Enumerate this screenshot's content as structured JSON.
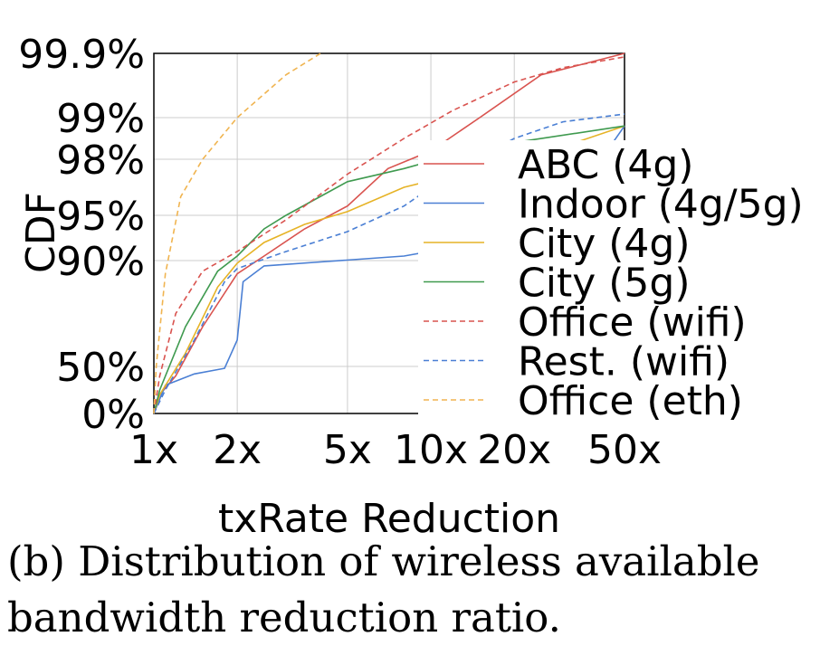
{
  "caption": "(b) Distribution of wireless available bandwidth reduction ratio.",
  "chart_data": {
    "type": "line",
    "xlabel": "txRate Reduction",
    "ylabel": "CDF",
    "x_scale": "log",
    "xlim": [
      1,
      50
    ],
    "x_ticks": [
      1,
      2,
      5,
      10,
      20,
      50
    ],
    "x_tick_labels": [
      "1x",
      "2x",
      "5x",
      "10x",
      "20x",
      "50x"
    ],
    "y_scale": "cdf-stretched (upper tail expanded)",
    "ylim": [
      0,
      99.9
    ],
    "y_ticks": [
      0,
      50,
      90,
      95,
      98,
      99,
      99.9
    ],
    "y_tick_labels": [
      "0%",
      "50%",
      "90%",
      "95%",
      "98%",
      "99%",
      "99.9%"
    ],
    "grid": true,
    "legend_position": "right, overlapping plot",
    "series": [
      {
        "name": "ABC (4g)",
        "color": "#d9534f",
        "dash": "solid",
        "points": [
          [
            1,
            0
          ],
          [
            1.05,
            20
          ],
          [
            1.2,
            40
          ],
          [
            1.5,
            65
          ],
          [
            2,
            85
          ],
          [
            2.5,
            90.5
          ],
          [
            3.5,
            93.5
          ],
          [
            5,
            95.5
          ],
          [
            7,
            97.5
          ],
          [
            10,
            98.2
          ],
          [
            15,
            99
          ],
          [
            25,
            99.6
          ],
          [
            50,
            99.9
          ]
        ]
      },
      {
        "name": "Indoor (4g/5g)",
        "color": "#4a7fd4",
        "dash": "solid",
        "points": [
          [
            1,
            0
          ],
          [
            1.1,
            30
          ],
          [
            1.4,
            42
          ],
          [
            1.8,
            48
          ],
          [
            2,
            60
          ],
          [
            2.1,
            82
          ],
          [
            2.5,
            88
          ],
          [
            4,
            89.5
          ],
          [
            8,
            90.5
          ],
          [
            15,
            92
          ],
          [
            25,
            94
          ],
          [
            35,
            96.5
          ],
          [
            50,
            98.8
          ]
        ]
      },
      {
        "name": "City (4g)",
        "color": "#e6b326",
        "dash": "solid",
        "points": [
          [
            1,
            0
          ],
          [
            1.05,
            20
          ],
          [
            1.3,
            55
          ],
          [
            1.7,
            80
          ],
          [
            2,
            89
          ],
          [
            2.5,
            92
          ],
          [
            3.5,
            94
          ],
          [
            5,
            95.2
          ],
          [
            8,
            96.5
          ],
          [
            15,
            97.5
          ],
          [
            30,
            98.3
          ],
          [
            50,
            98.8
          ]
        ]
      },
      {
        "name": "City (5g)",
        "color": "#3f9a4f",
        "dash": "solid",
        "points": [
          [
            1,
            0
          ],
          [
            1.05,
            25
          ],
          [
            1.3,
            65
          ],
          [
            1.7,
            86
          ],
          [
            2,
            90.5
          ],
          [
            2.5,
            93.5
          ],
          [
            3,
            95
          ],
          [
            5,
            96.8
          ],
          [
            8,
            97.5
          ],
          [
            12,
            98.1
          ],
          [
            20,
            98.4
          ],
          [
            50,
            98.8
          ]
        ]
      },
      {
        "name": "Office (wifi)",
        "color": "#d9534f",
        "dash": "dashed",
        "points": [
          [
            1,
            0
          ],
          [
            1.05,
            40
          ],
          [
            1.2,
            70
          ],
          [
            1.5,
            86
          ],
          [
            2,
            91
          ],
          [
            3,
            94.5
          ],
          [
            5,
            97.2
          ],
          [
            8,
            98.5
          ],
          [
            12,
            99.1
          ],
          [
            20,
            99.5
          ],
          [
            30,
            99.7
          ],
          [
            50,
            99.85
          ]
        ]
      },
      {
        "name": "Rest. (wifi)",
        "color": "#4a7fd4",
        "dash": "dashed",
        "points": [
          [
            1,
            0
          ],
          [
            1.1,
            25
          ],
          [
            1.4,
            60
          ],
          [
            1.8,
            82
          ],
          [
            2,
            87
          ],
          [
            3,
            91
          ],
          [
            5,
            93.2
          ],
          [
            8,
            95.5
          ],
          [
            12,
            97.3
          ],
          [
            20,
            98.5
          ],
          [
            30,
            98.9
          ],
          [
            50,
            99.05
          ]
        ]
      },
      {
        "name": "Office (eth)",
        "color": "#f0b450",
        "dash": "dashed",
        "points": [
          [
            1,
            0
          ],
          [
            1.02,
            50
          ],
          [
            1.1,
            85
          ],
          [
            1.25,
            96
          ],
          [
            1.5,
            98
          ],
          [
            2,
            99
          ],
          [
            3,
            99.6
          ],
          [
            4,
            99.9
          ]
        ]
      }
    ]
  }
}
